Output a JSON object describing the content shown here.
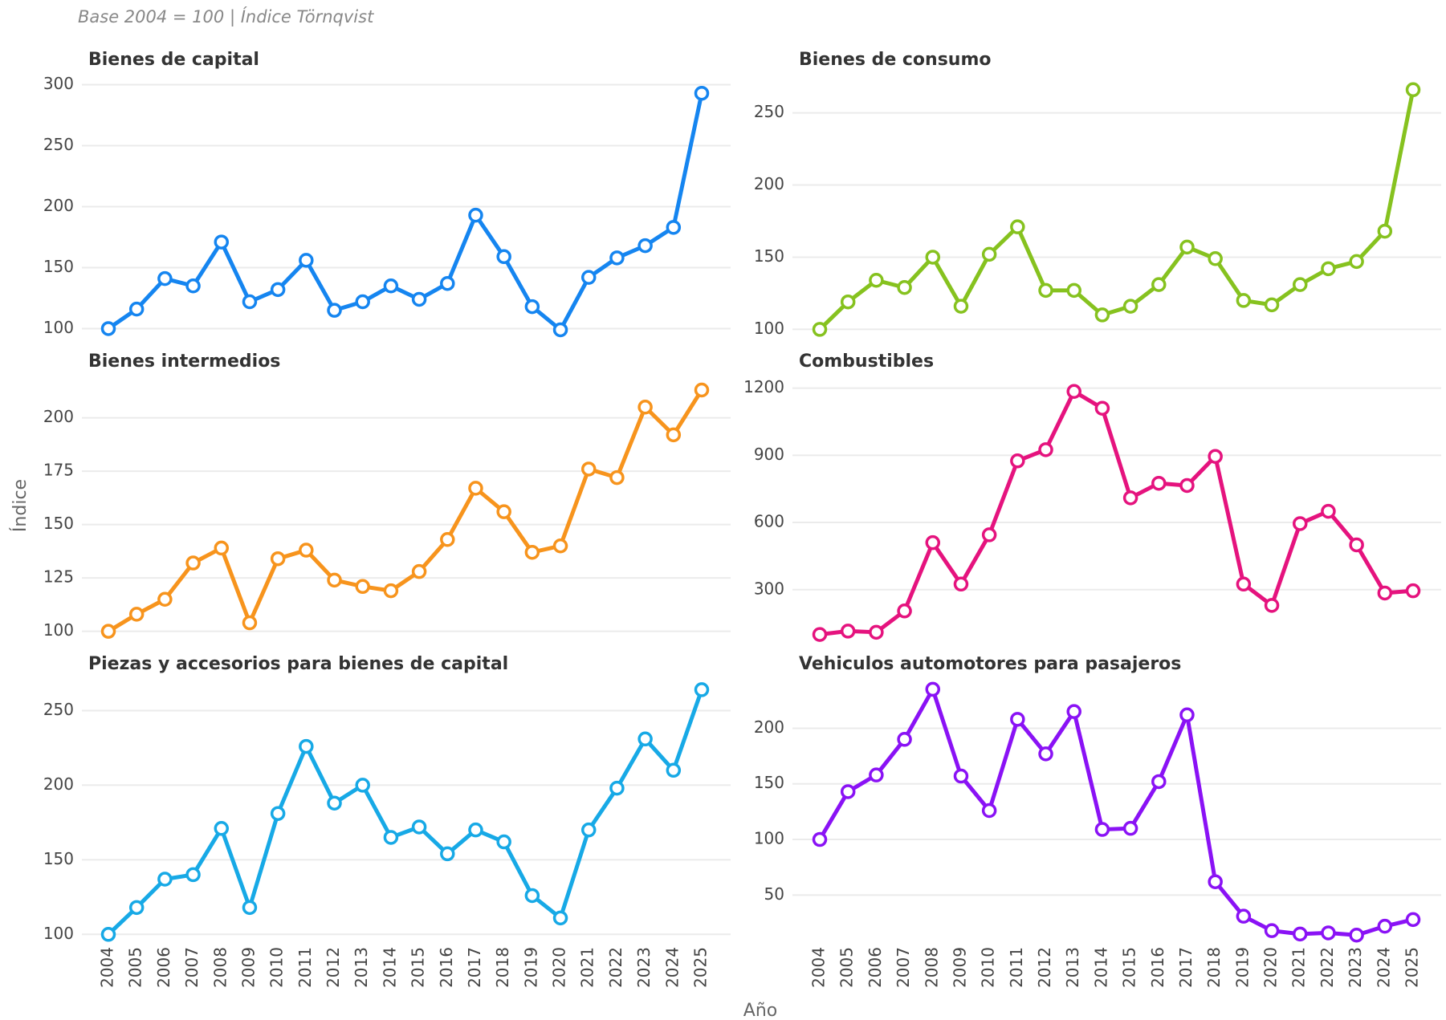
{
  "subtitle": "Base 2004 = 100 | Índice Törnqvist",
  "y_label": "Índice",
  "x_label": "Año",
  "categories": [
    "2004",
    "2005",
    "2006",
    "2007",
    "2008",
    "2009",
    "2010",
    "2011",
    "2012",
    "2013",
    "2014",
    "2015",
    "2016",
    "2017",
    "2018",
    "2019",
    "2020",
    "2021",
    "2022",
    "2023",
    "2024",
    "2025"
  ],
  "chart_data": [
    {
      "type": "line",
      "title": "Bienes de capital",
      "color": "#1585f0",
      "grid": true,
      "ylim": [
        97,
        303
      ],
      "yticks": [
        100,
        150,
        200,
        250,
        300
      ],
      "values": [
        100,
        116,
        141,
        135,
        171,
        122,
        132,
        156,
        115,
        122,
        135,
        124,
        137,
        193,
        159,
        118,
        99,
        142,
        158,
        168,
        183,
        293
      ]
    },
    {
      "type": "line",
      "title": "Bienes de consumo",
      "color": "#86c21f",
      "grid": true,
      "ylim": [
        98,
        272
      ],
      "yticks": [
        100,
        150,
        200,
        250
      ],
      "values": [
        100,
        119,
        134,
        129,
        150,
        116,
        152,
        171,
        127,
        127,
        110,
        116,
        131,
        157,
        149,
        120,
        117,
        131,
        142,
        147,
        168,
        266
      ]
    },
    {
      "type": "line",
      "title": "Bienes intermedios",
      "color": "#f7941d",
      "grid": true,
      "ylim": [
        98,
        216
      ],
      "yticks": [
        100,
        125,
        150,
        175,
        200
      ],
      "values": [
        100,
        108,
        115,
        132,
        139,
        104,
        134,
        138,
        124,
        121,
        119,
        128,
        143,
        167,
        156,
        137,
        140,
        176,
        172,
        205,
        192,
        213
      ]
    },
    {
      "type": "line",
      "title": "Combustibles",
      "color": "#e5137e",
      "grid": true,
      "ylim": [
        95,
        1220
      ],
      "yticks": [
        300,
        600,
        900,
        1200
      ],
      "values": [
        100,
        115,
        110,
        205,
        510,
        325,
        545,
        875,
        925,
        1185,
        1110,
        710,
        775,
        765,
        895,
        325,
        230,
        595,
        650,
        500,
        285,
        295
      ]
    },
    {
      "type": "line",
      "title": "Piezas y accesorios para bienes de capital",
      "color": "#17a9e6",
      "grid": true,
      "ylim": [
        98,
        268
      ],
      "yticks": [
        100,
        150,
        200,
        250
      ],
      "values": [
        100,
        118,
        137,
        140,
        171,
        118,
        181,
        226,
        188,
        200,
        165,
        172,
        154,
        170,
        162,
        126,
        111,
        170,
        198,
        231,
        210,
        264
      ]
    },
    {
      "type": "line",
      "title": "Vehiculos automotores para pasajeros",
      "color": "#8a12f5",
      "grid": true,
      "ylim": [
        12,
        240
      ],
      "yticks": [
        50,
        100,
        150,
        200
      ],
      "values": [
        100,
        143,
        158,
        190,
        235,
        157,
        126,
        208,
        177,
        215,
        109,
        110,
        152,
        212,
        62,
        31,
        18,
        15,
        16,
        14,
        22,
        28
      ]
    }
  ]
}
